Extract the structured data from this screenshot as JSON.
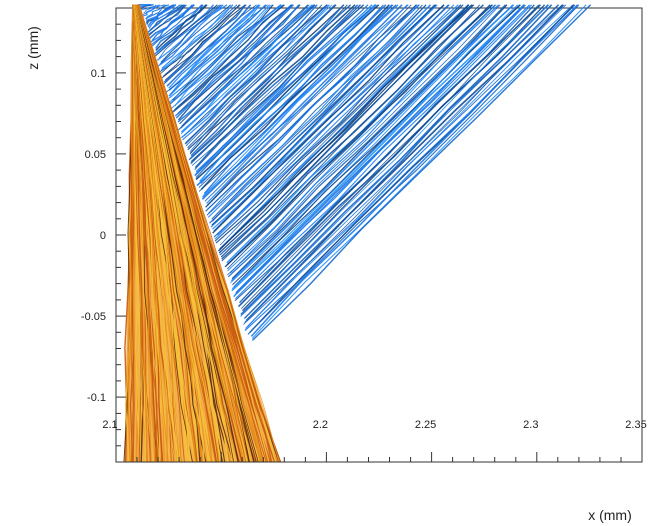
{
  "chart_data": {
    "type": "line",
    "xlabel": "x (mm)",
    "ylabel": "z (mm)",
    "xlim": [
      2.1,
      2.35
    ],
    "ylim": [
      -0.14,
      0.14
    ],
    "x_ticks": [
      {
        "value": 2.1,
        "label": "2.1"
      },
      {
        "value": 2.2,
        "label": "2.2"
      },
      {
        "value": 2.25,
        "label": "2.25"
      },
      {
        "value": 2.3,
        "label": "2.3"
      },
      {
        "value": 2.35,
        "label": "2.35"
      }
    ],
    "y_ticks": [
      {
        "value": 0.1,
        "label": "0.1"
      },
      {
        "value": 0.05,
        "label": "0.05"
      },
      {
        "value": 0,
        "label": "0"
      },
      {
        "value": -0.05,
        "label": "-0.05"
      },
      {
        "value": -0.1,
        "label": "-0.1"
      }
    ],
    "grid": false,
    "series": [
      {
        "color": "#1a74e0",
        "outline": [
          {
            "x": 2.111,
            "z": 0.142
          },
          {
            "x": 2.32,
            "z": 0.142
          },
          {
            "x": 2.164,
            "z": -0.065
          }
        ]
      },
      {
        "color": "#e07a14",
        "outline": [
          {
            "x": 2.108,
            "z": 0.142
          },
          {
            "x": 2.111,
            "z": 0.142
          },
          {
            "x": 2.178,
            "z": -0.14
          },
          {
            "x": 2.104,
            "z": -0.14
          }
        ]
      }
    ]
  }
}
